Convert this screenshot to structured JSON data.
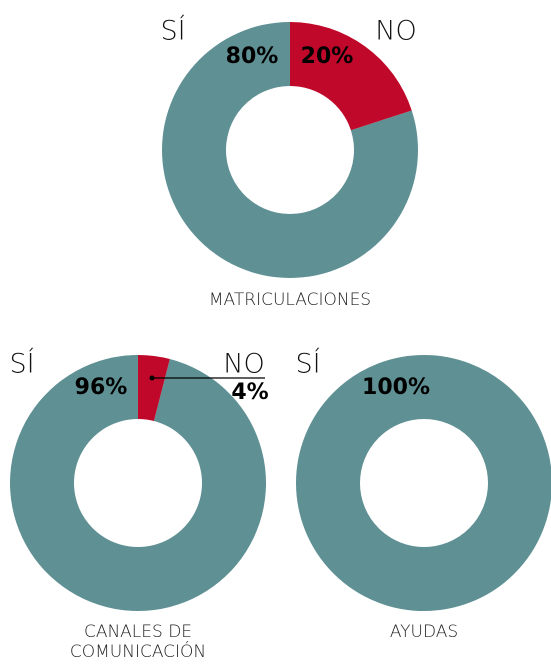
{
  "chart_data": [
    {
      "type": "pie",
      "title": "MATRICULACIONES",
      "categories": [
        "SÍ",
        "NO"
      ],
      "values": [
        80,
        20
      ],
      "value_labels": [
        "80%",
        "20%"
      ],
      "colors": [
        "#5f9094",
        "#c0092a"
      ]
    },
    {
      "type": "pie",
      "title": "CANALES DE COMUNICACIÓN",
      "categories": [
        "SÍ",
        "NO"
      ],
      "values": [
        96,
        4
      ],
      "value_labels": [
        "96%",
        "4%"
      ],
      "colors": [
        "#5f9094",
        "#c0092a"
      ]
    },
    {
      "type": "pie",
      "title": "AYUDAS",
      "categories": [
        "SÍ"
      ],
      "values": [
        100
      ],
      "value_labels": [
        "100%"
      ],
      "colors": [
        "#5f9094"
      ]
    }
  ]
}
